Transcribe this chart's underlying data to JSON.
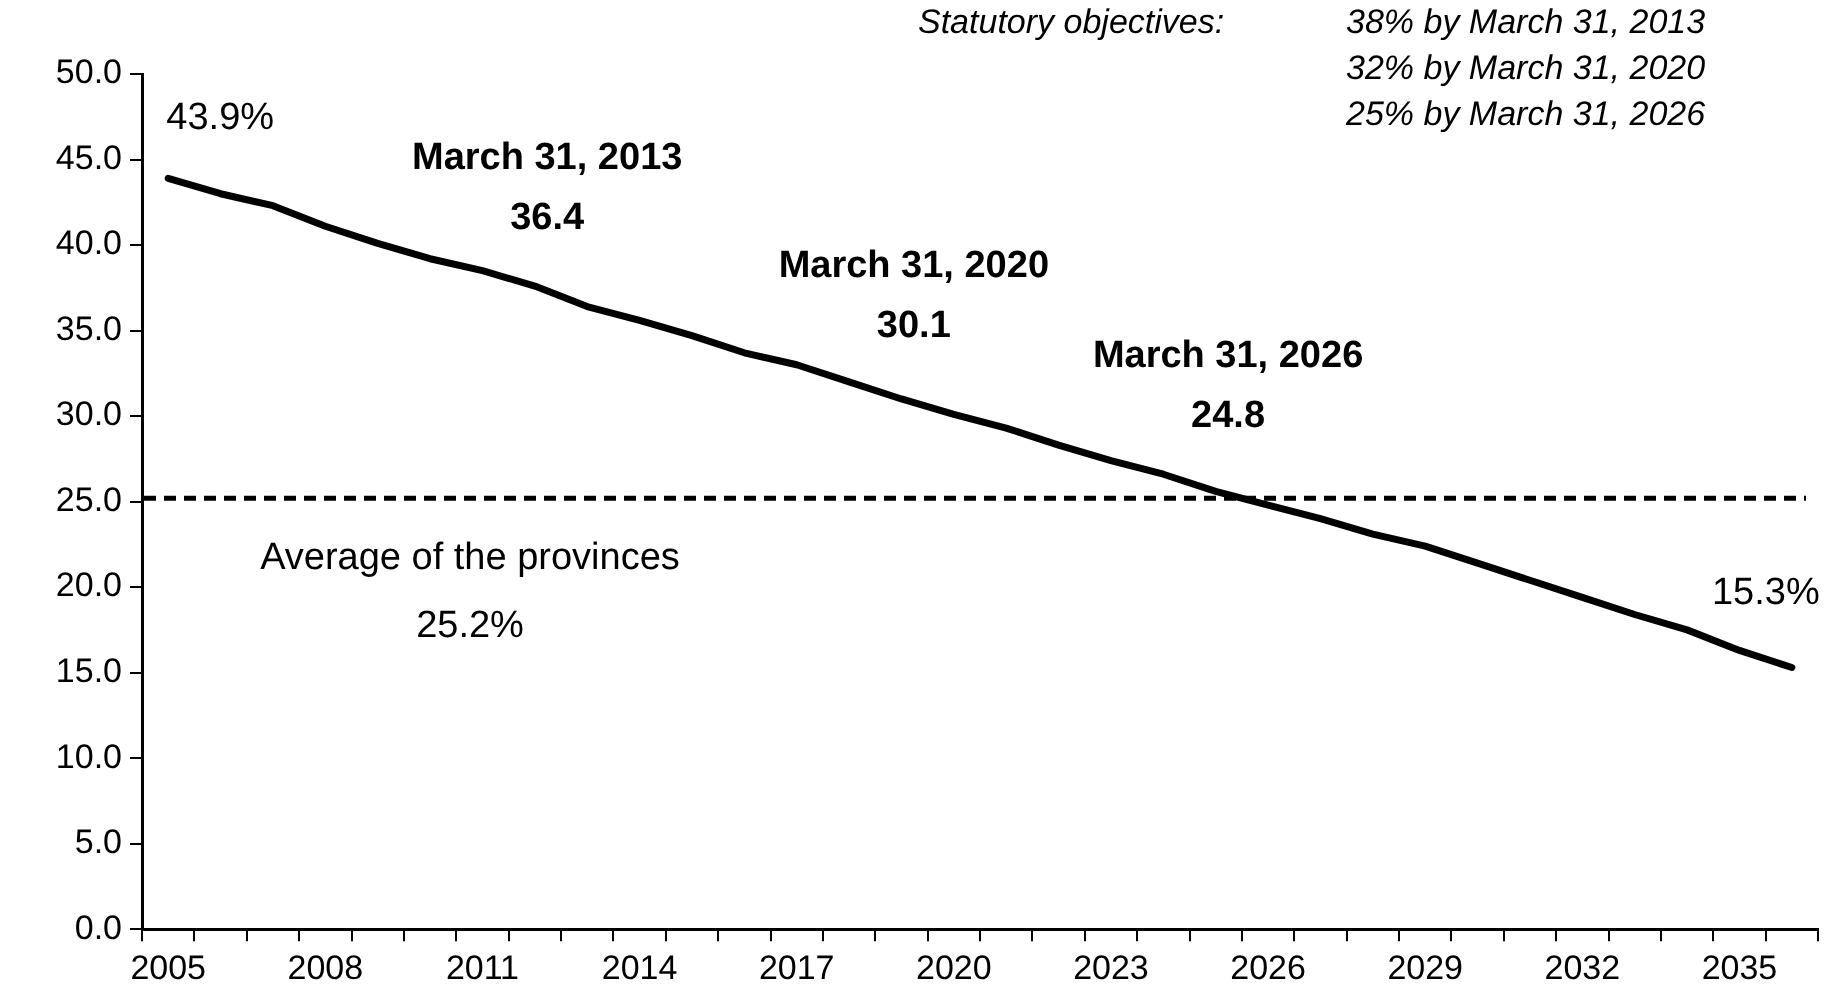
{
  "chart_data": {
    "type": "line",
    "categories": [
      "2005",
      null,
      null,
      "2008",
      null,
      null,
      "2011",
      null,
      null,
      "2014",
      null,
      null,
      "2017",
      null,
      null,
      "2020",
      null,
      null,
      "2023",
      null,
      null,
      "2026",
      null,
      null,
      "2029",
      null,
      null,
      "2032",
      null,
      null,
      "2035",
      null
    ],
    "series": [
      {
        "color": "#000000",
        "values": [
          43.9,
          43.0,
          42.3,
          41.1,
          40.1,
          39.2,
          38.5,
          37.6,
          36.4,
          35.6,
          34.7,
          33.7,
          33.0,
          32.0,
          31.0,
          30.1,
          29.3,
          28.3,
          27.4,
          26.6,
          25.6,
          24.8,
          24.0,
          23.1,
          22.4,
          21.4,
          20.4,
          19.4,
          18.4,
          17.5,
          16.3,
          15.3
        ],
        "value_labels": [
          "43.9%",
          null,
          null,
          null,
          null,
          null,
          null,
          null,
          "36.4",
          null,
          null,
          null,
          null,
          null,
          null,
          "30.1",
          null,
          null,
          null,
          null,
          null,
          "24.8",
          null,
          null,
          null,
          null,
          null,
          null,
          null,
          null,
          null,
          "15.3%"
        ]
      }
    ],
    "ylim": [
      0,
      50
    ],
    "yticks": [
      {
        "value": 0,
        "label": "0.0"
      },
      {
        "value": 5,
        "label": "5.0"
      },
      {
        "value": 10,
        "label": "10.0"
      },
      {
        "value": 15,
        "label": "15.0"
      },
      {
        "value": 20,
        "label": "20.0"
      },
      {
        "value": 25,
        "label": "25.0"
      },
      {
        "value": 30,
        "label": "30.0"
      },
      {
        "value": 35,
        "label": "35.0"
      },
      {
        "value": 40,
        "label": "40.0"
      },
      {
        "value": 45,
        "label": "45.0"
      },
      {
        "value": 50,
        "label": "50.0"
      }
    ],
    "ref_lines": [
      {
        "axis": "y",
        "value": 25.2,
        "label": "Average of the provinces\n25.2%",
        "color": "#000000",
        "line_style": "dashed"
      }
    ],
    "annotations": [
      "Statutory objectives:",
      "38% by March 31, 2013",
      "32% by March 31, 2020",
      "25% by March 31, 2026",
      "March 31, 2013",
      "March 31, 2020",
      "March 31, 2026"
    ],
    "grid": false,
    "legend": false,
    "marker": "none",
    "line_style": "solid"
  }
}
